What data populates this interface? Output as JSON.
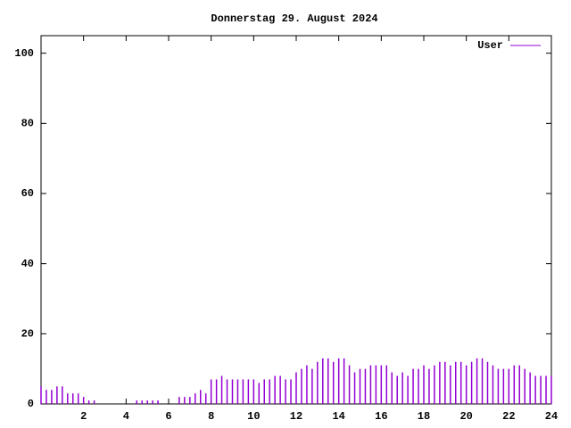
{
  "chart_data": {
    "type": "impulse",
    "title": "Donnerstag 29. August 2024",
    "x": [
      0,
      0.25,
      0.5,
      0.75,
      1,
      1.25,
      1.5,
      1.75,
      2,
      2.25,
      2.5,
      2.75,
      3,
      3.25,
      3.5,
      3.75,
      4,
      4.25,
      4.5,
      4.75,
      5,
      5.25,
      5.5,
      5.75,
      6,
      6.25,
      6.5,
      6.75,
      7,
      7.25,
      7.5,
      7.75,
      8,
      8.25,
      8.5,
      8.75,
      9,
      9.25,
      9.5,
      9.75,
      10,
      10.25,
      10.5,
      10.75,
      11,
      11.25,
      11.5,
      11.75,
      12,
      12.25,
      12.5,
      12.75,
      13,
      13.25,
      13.5,
      13.75,
      14,
      14.25,
      14.5,
      14.75,
      15,
      15.25,
      15.5,
      15.75,
      16,
      16.25,
      16.5,
      16.75,
      17,
      17.25,
      17.5,
      17.75,
      18,
      18.25,
      18.5,
      18.75,
      19,
      19.25,
      19.5,
      19.75,
      20,
      20.25,
      20.5,
      20.75,
      21,
      21.25,
      21.5,
      21.75,
      22,
      22.25,
      22.5,
      22.75,
      23,
      23.25,
      23.5,
      23.75,
      24
    ],
    "series": [
      {
        "name": "User",
        "color": "#9400d3",
        "values": [
          5,
          4,
          4,
          5,
          5,
          3,
          3,
          3,
          2,
          1,
          1,
          0,
          0,
          0,
          0,
          0,
          0,
          0,
          1,
          1,
          1,
          1,
          1,
          0,
          0,
          0,
          2,
          2,
          2,
          3,
          4,
          3,
          7,
          7,
          8,
          7,
          7,
          7,
          7,
          7,
          7,
          6,
          7,
          7,
          8,
          8,
          7,
          7,
          9,
          10,
          11,
          10,
          12,
          13,
          13,
          12,
          13,
          13,
          11,
          9,
          10,
          10,
          11,
          11,
          11,
          11,
          9,
          8,
          9,
          8,
          10,
          10,
          11,
          10,
          11,
          12,
          12,
          11,
          12,
          12,
          11,
          12,
          13,
          13,
          12,
          11,
          10,
          10,
          10,
          11,
          11,
          10,
          9,
          8,
          8,
          8,
          8
        ]
      }
    ],
    "xlim": [
      0,
      24
    ],
    "ylim": [
      0,
      105
    ],
    "xticks": [
      2,
      4,
      6,
      8,
      10,
      12,
      14,
      16,
      18,
      20,
      22,
      24
    ],
    "yticks": [
      0,
      20,
      40,
      60,
      80,
      100
    ],
    "legend": "top right"
  }
}
